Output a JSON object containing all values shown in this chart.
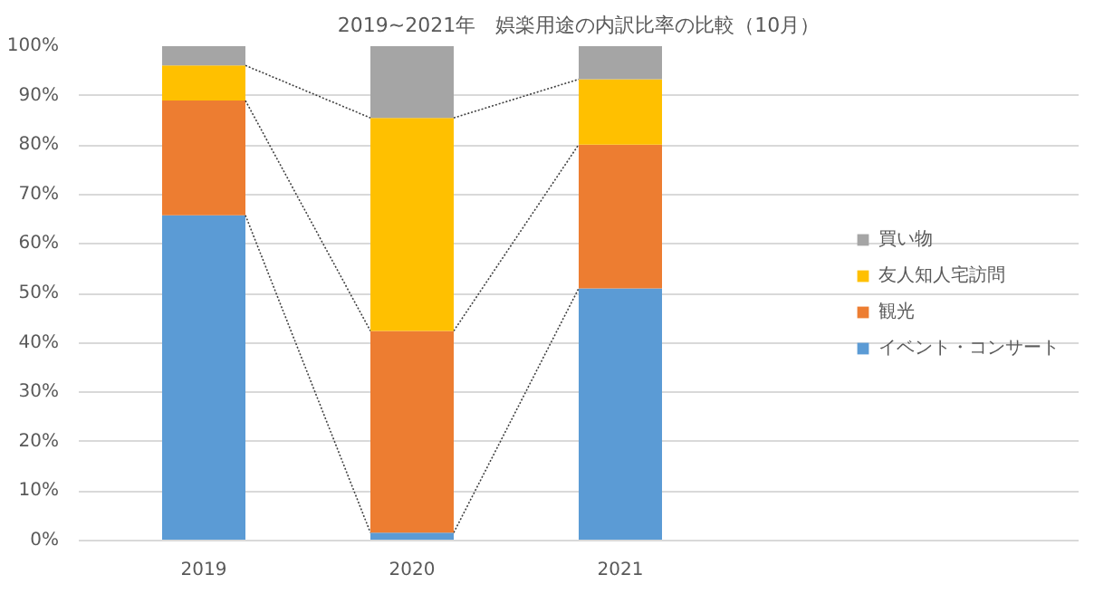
{
  "chart_data": {
    "type": "bar",
    "title": "2019~2021年　娯楽用途の内訳比率の比較（10月）",
    "categories": [
      "2019",
      "2020",
      "2021"
    ],
    "stacked": true,
    "series": [
      {
        "name": "イベント・コンサート",
        "color": "#5b9bd5",
        "values": [
          65.8,
          1.6,
          51.0
        ]
      },
      {
        "name": "観光",
        "color": "#ed7d31",
        "values": [
          23.2,
          40.8,
          29.1
        ]
      },
      {
        "name": "友人知人宅訪問",
        "color": "#ffc000",
        "values": [
          7.1,
          43.1,
          13.2
        ]
      },
      {
        "name": "買い物",
        "color": "#a5a5a5",
        "values": [
          3.9,
          14.5,
          6.7
        ]
      }
    ],
    "ylim": [
      0,
      100
    ],
    "yticks": [
      {
        "value": 0,
        "label": "0%"
      },
      {
        "value": 10,
        "label": "10%"
      },
      {
        "value": 20,
        "label": "20%"
      },
      {
        "value": 30,
        "label": "30%"
      },
      {
        "value": 40,
        "label": "40%"
      },
      {
        "value": 50,
        "label": "50%"
      },
      {
        "value": 60,
        "label": "60%"
      },
      {
        "value": 70,
        "label": "70%"
      },
      {
        "value": 80,
        "label": "80%"
      },
      {
        "value": 90,
        "label": "90%"
      },
      {
        "value": 100,
        "label": "100%"
      }
    ],
    "grid": "y",
    "legend": "right"
  }
}
